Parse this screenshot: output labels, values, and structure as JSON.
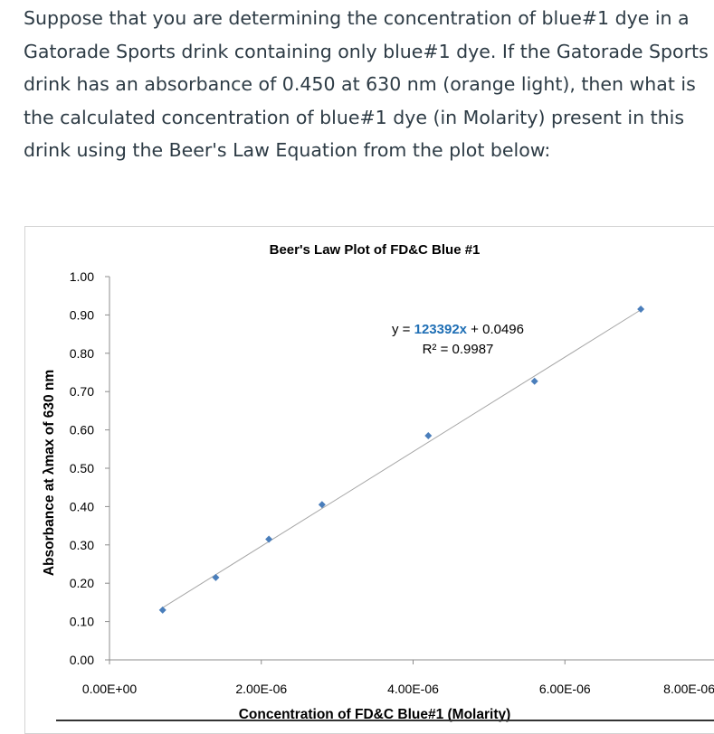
{
  "question": {
    "lines": [
      "Suppose that you are determining the concentration of blue#1 dye in a",
      "Gatorade Sports drink containing only blue#1 dye.  If the Gatorade Sports",
      "drink has an absorbance of 0.450 at 630 nm (orange light), then what is",
      "the calculated concentration of blue#1 dye (in Molarity) present in this",
      "drink using the Beer's Law Equation from the plot below:"
    ]
  },
  "chart_data": {
    "type": "scatter",
    "title": "Beer's Law Plot of FD&C Blue #1",
    "xlabel": "Concentration of FD&C Blue#1 (Molarity)",
    "ylabel": "Absorbance at λmax of 630 nm",
    "xlim": [
      0,
      8e-06
    ],
    "ylim": [
      0,
      1.0
    ],
    "x_ticks": [
      "0.00E+00",
      "2.00E-06",
      "4.00E-06",
      "6.00E-06",
      "8.00E-06"
    ],
    "y_ticks": [
      "0.00",
      "0.10",
      "0.20",
      "0.30",
      "0.40",
      "0.50",
      "0.60",
      "0.70",
      "0.80",
      "0.90",
      "1.00"
    ],
    "series": [
      {
        "x": [
          7e-07,
          1.4e-06,
          2.1e-06,
          2.8e-06,
          4.2e-06,
          5.6e-06,
          7e-06
        ],
        "y": [
          0.13,
          0.215,
          0.315,
          0.405,
          0.585,
          0.727,
          0.915
        ],
        "color": "#4a7ebb"
      }
    ],
    "trendline": {
      "slope": 123392,
      "intercept": 0.0496,
      "color": "#a6a6a6",
      "equation_parts": [
        "y = ",
        "123392x",
        " + 0.0496"
      ],
      "r2_label": "R² = 0.9987"
    },
    "grid": false
  }
}
